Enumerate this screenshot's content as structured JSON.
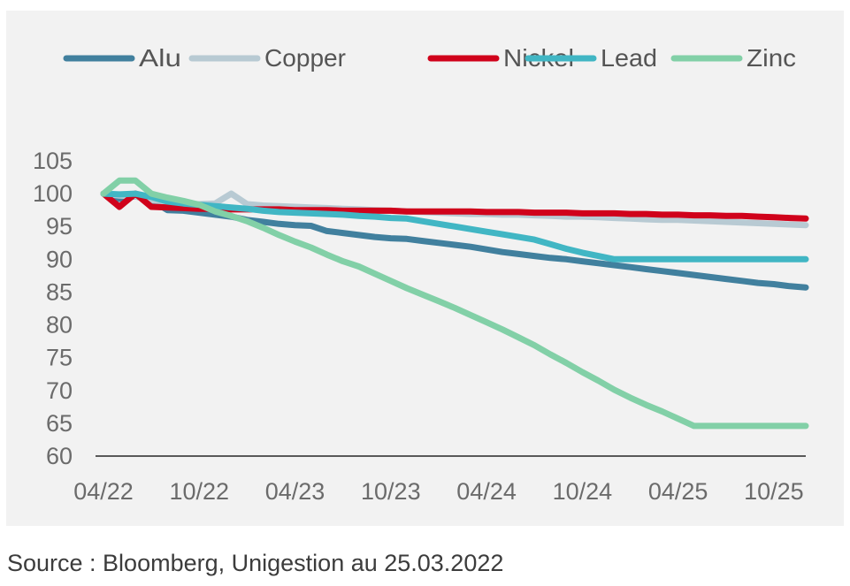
{
  "chart_data": {
    "type": "line",
    "title": "",
    "xlabel": "",
    "ylabel": "",
    "ylim": [
      60,
      105
    ],
    "yticks": [
      60,
      65,
      70,
      75,
      80,
      85,
      90,
      95,
      100,
      105
    ],
    "x_tick_labels": [
      "04/22",
      "10/22",
      "04/23",
      "10/23",
      "04/24",
      "10/24",
      "04/25",
      "10/25"
    ],
    "x_tick_dates": [
      "2022-04",
      "2022-10",
      "2023-04",
      "2023-10",
      "2024-04",
      "2024-10",
      "2025-04",
      "2025-10"
    ],
    "x_range": [
      "2022-04",
      "2025-12"
    ],
    "legend_position": "top",
    "grid": false,
    "series": [
      {
        "name": "Alu",
        "color": "#41809e",
        "x": [
          "2022-04",
          "2022-05",
          "2022-06",
          "2022-07",
          "2022-08",
          "2022-09",
          "2022-10",
          "2022-11",
          "2022-12",
          "2023-01",
          "2023-02",
          "2023-03",
          "2023-04",
          "2023-05",
          "2023-06",
          "2023-07",
          "2023-08",
          "2023-09",
          "2023-10",
          "2023-11",
          "2023-12",
          "2024-01",
          "2024-02",
          "2024-03",
          "2024-04",
          "2024-05",
          "2024-06",
          "2024-07",
          "2024-08",
          "2024-09",
          "2024-10",
          "2024-11",
          "2024-12",
          "2025-01",
          "2025-02",
          "2025-03",
          "2025-04",
          "2025-05",
          "2025-06",
          "2025-07",
          "2025-08",
          "2025-09",
          "2025-10",
          "2025-11",
          "2025-12"
        ],
        "y": [
          100,
          99.2,
          99.6,
          99.0,
          97.5,
          97.4,
          97.1,
          96.8,
          96.5,
          96.0,
          95.7,
          95.4,
          95.2,
          95.1,
          94.3,
          94.0,
          93.7,
          93.4,
          93.2,
          93.1,
          92.8,
          92.5,
          92.2,
          91.9,
          91.5,
          91.1,
          90.8,
          90.5,
          90.2,
          90.0,
          89.7,
          89.4,
          89.1,
          88.8,
          88.5,
          88.2,
          87.9,
          87.6,
          87.3,
          87.0,
          86.7,
          86.4,
          86.2,
          85.9,
          85.7
        ]
      },
      {
        "name": "Copper",
        "color": "#b8cad3",
        "x": [
          "2022-04",
          "2022-05",
          "2022-06",
          "2022-07",
          "2022-08",
          "2022-09",
          "2022-10",
          "2022-11",
          "2022-12",
          "2023-01",
          "2023-02",
          "2023-03",
          "2023-04",
          "2023-05",
          "2023-06",
          "2023-07",
          "2023-08",
          "2023-09",
          "2023-10",
          "2023-11",
          "2023-12",
          "2024-01",
          "2024-02",
          "2024-03",
          "2024-04",
          "2024-05",
          "2024-06",
          "2024-07",
          "2024-08",
          "2024-09",
          "2024-10",
          "2024-11",
          "2024-12",
          "2025-01",
          "2025-02",
          "2025-03",
          "2025-04",
          "2025-05",
          "2025-06",
          "2025-07",
          "2025-08",
          "2025-09",
          "2025-10",
          "2025-11",
          "2025-12"
        ],
        "y": [
          100,
          99.7,
          99.6,
          99.0,
          98.8,
          98.5,
          98.4,
          98.5,
          100,
          98.4,
          98.2,
          98.1,
          98.0,
          97.9,
          97.8,
          97.7,
          97.6,
          97.5,
          97.4,
          97.3,
          97.2,
          97.1,
          97.0,
          96.9,
          96.9,
          96.8,
          96.8,
          96.7,
          96.6,
          96.5,
          96.5,
          96.4,
          96.3,
          96.2,
          96.1,
          96.0,
          96.0,
          95.9,
          95.8,
          95.7,
          95.6,
          95.5,
          95.4,
          95.3,
          95.2
        ]
      },
      {
        "name": "Nickel",
        "color": "#d0021b",
        "x": [
          "2022-04",
          "2022-05",
          "2022-06",
          "2022-07",
          "2022-08",
          "2022-09",
          "2022-10",
          "2022-11",
          "2022-12",
          "2023-01",
          "2023-02",
          "2023-03",
          "2023-04",
          "2023-05",
          "2023-06",
          "2023-07",
          "2023-08",
          "2023-09",
          "2023-10",
          "2023-11",
          "2023-12",
          "2024-01",
          "2024-02",
          "2024-03",
          "2024-04",
          "2024-05",
          "2024-06",
          "2024-07",
          "2024-08",
          "2024-09",
          "2024-10",
          "2024-11",
          "2024-12",
          "2025-01",
          "2025-02",
          "2025-03",
          "2025-04",
          "2025-05",
          "2025-06",
          "2025-07",
          "2025-08",
          "2025-09",
          "2025-10",
          "2025-11",
          "2025-12"
        ],
        "y": [
          100,
          98.0,
          100,
          98.0,
          97.9,
          97.8,
          97.7,
          97.7,
          97.6,
          97.6,
          97.6,
          97.6,
          97.5,
          97.5,
          97.5,
          97.4,
          97.4,
          97.4,
          97.4,
          97.3,
          97.3,
          97.3,
          97.3,
          97.3,
          97.2,
          97.2,
          97.2,
          97.1,
          97.1,
          97.1,
          97.0,
          97.0,
          97.0,
          96.9,
          96.9,
          96.8,
          96.8,
          96.7,
          96.7,
          96.6,
          96.6,
          96.5,
          96.4,
          96.3,
          96.2
        ]
      },
      {
        "name": "Lead",
        "color": "#41b6c4",
        "x": [
          "2022-04",
          "2022-05",
          "2022-06",
          "2022-07",
          "2022-08",
          "2022-09",
          "2022-10",
          "2022-11",
          "2022-12",
          "2023-01",
          "2023-02",
          "2023-03",
          "2023-04",
          "2023-05",
          "2023-06",
          "2023-07",
          "2023-08",
          "2023-09",
          "2023-10",
          "2023-11",
          "2023-12",
          "2024-01",
          "2024-02",
          "2024-03",
          "2024-04",
          "2024-05",
          "2024-06",
          "2024-07",
          "2024-08",
          "2024-09",
          "2024-10",
          "2024-11",
          "2024-12",
          "2025-01",
          "2025-02",
          "2025-03",
          "2025-04",
          "2025-05",
          "2025-06",
          "2025-07",
          "2025-08",
          "2025-09",
          "2025-10",
          "2025-11",
          "2025-12"
        ],
        "y": [
          100,
          99.9,
          100,
          99.5,
          98.8,
          98.5,
          98.3,
          98.1,
          97.9,
          97.7,
          97.4,
          97.2,
          97.1,
          97.0,
          96.9,
          96.8,
          96.6,
          96.5,
          96.3,
          96.2,
          95.8,
          95.4,
          95.0,
          94.6,
          94.2,
          93.8,
          93.4,
          93.0,
          92.3,
          91.6,
          91.0,
          90.5,
          90.0,
          90.0,
          90.0,
          90.0,
          90.0,
          90.0,
          90.0,
          90.0,
          90.0,
          90.0,
          90.0,
          90.0,
          90.0
        ]
      },
      {
        "name": "Zinc",
        "color": "#82d0a7",
        "x": [
          "2022-04",
          "2022-05",
          "2022-06",
          "2022-07",
          "2022-08",
          "2022-09",
          "2022-10",
          "2022-11",
          "2022-12",
          "2023-01",
          "2023-02",
          "2023-03",
          "2023-04",
          "2023-05",
          "2023-06",
          "2023-07",
          "2023-08",
          "2023-09",
          "2023-10",
          "2023-11",
          "2023-12",
          "2024-01",
          "2024-02",
          "2024-03",
          "2024-04",
          "2024-05",
          "2024-06",
          "2024-07",
          "2024-08",
          "2024-09",
          "2024-10",
          "2024-11",
          "2024-12",
          "2025-01",
          "2025-02",
          "2025-03",
          "2025-04",
          "2025-05",
          "2025-06",
          "2025-07",
          "2025-08",
          "2025-09",
          "2025-10",
          "2025-11",
          "2025-12"
        ],
        "y": [
          100,
          102,
          102,
          100,
          99.4,
          98.9,
          98.3,
          97.3,
          96.6,
          95.8,
          94.8,
          93.7,
          92.7,
          91.8,
          90.7,
          89.7,
          88.9,
          87.8,
          86.7,
          85.6,
          84.6,
          83.6,
          82.6,
          81.5,
          80.4,
          79.3,
          78.1,
          76.9,
          75.5,
          74.2,
          72.8,
          71.5,
          70.1,
          68.9,
          67.8,
          66.8,
          65.7,
          64.6,
          64.6,
          64.6,
          64.6,
          64.6,
          64.6,
          64.6,
          64.6
        ]
      }
    ]
  },
  "source_note": "Source : Bloomberg, Unigestion au 25.03.2022"
}
